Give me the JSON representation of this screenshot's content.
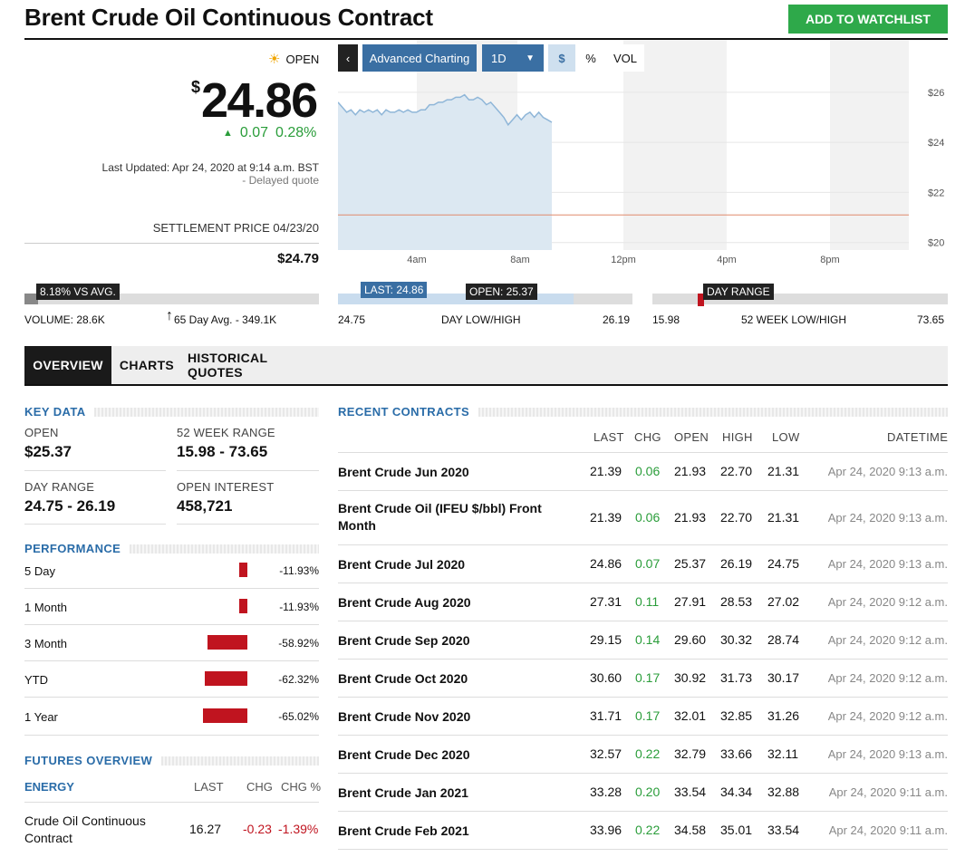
{
  "header": {
    "title": "Brent Crude Oil Continuous Contract",
    "watchlist_label": "ADD TO WATCHLIST"
  },
  "quote": {
    "status": "OPEN",
    "currency": "$",
    "price": "24.86",
    "change": "0.07",
    "change_pct": "0.28%",
    "last_updated": "Last Updated: Apr 24, 2020 at 9:14 a.m. BST",
    "delayed": "-  Delayed quote",
    "settlement_label": "SETTLEMENT PRICE 04/23/20",
    "settlement_value": "$24.79"
  },
  "chart_toolbar": {
    "advanced": "Advanced Charting",
    "interval": "1D",
    "dollar": "$",
    "percent": "%",
    "vol": "VOL"
  },
  "chart": {
    "x_ticks": [
      "4am",
      "8am",
      "12pm",
      "4pm",
      "8pm"
    ],
    "y_ticks": [
      "$26",
      "$24",
      "$22",
      "$20"
    ],
    "ylim": [
      19.7,
      26.5
    ],
    "prev_close": 21.1,
    "line_color": "#8fb6d8",
    "fill_color": "#dce8f2",
    "ref_line_color": "#e08a6c",
    "series": [
      [
        0,
        25.6
      ],
      [
        2,
        25.4
      ],
      [
        4,
        25.2
      ],
      [
        6,
        25.3
      ],
      [
        8,
        25.1
      ],
      [
        10,
        25.3
      ],
      [
        12,
        25.2
      ],
      [
        14,
        25.3
      ],
      [
        16,
        25.2
      ],
      [
        18,
        25.3
      ],
      [
        20,
        25.1
      ],
      [
        22,
        25.3
      ],
      [
        24,
        25.2
      ],
      [
        26,
        25.2
      ],
      [
        28,
        25.3
      ],
      [
        30,
        25.2
      ],
      [
        32,
        25.3
      ],
      [
        34,
        25.2
      ],
      [
        36,
        25.2
      ],
      [
        38,
        25.3
      ],
      [
        40,
        25.3
      ],
      [
        42,
        25.5
      ],
      [
        44,
        25.5
      ],
      [
        46,
        25.6
      ],
      [
        48,
        25.6
      ],
      [
        50,
        25.7
      ],
      [
        52,
        25.7
      ],
      [
        54,
        25.8
      ],
      [
        56,
        25.8
      ],
      [
        58,
        25.9
      ],
      [
        60,
        25.7
      ],
      [
        62,
        25.7
      ],
      [
        64,
        25.8
      ],
      [
        66,
        25.7
      ],
      [
        68,
        25.5
      ],
      [
        70,
        25.6
      ],
      [
        72,
        25.4
      ],
      [
        74,
        25.2
      ],
      [
        76,
        25.0
      ],
      [
        78,
        24.7
      ],
      [
        80,
        24.9
      ],
      [
        82,
        25.1
      ],
      [
        84,
        24.9
      ],
      [
        86,
        25.1
      ],
      [
        88,
        25.2
      ],
      [
        90,
        25.0
      ],
      [
        92,
        25.2
      ],
      [
        94,
        25.0
      ],
      [
        96,
        24.9
      ],
      [
        98,
        24.8
      ]
    ]
  },
  "volume_bar": {
    "label": "8.18% VS AVG.",
    "volume": "VOLUME: 28.6K",
    "avg": "65 Day Avg. - 349.1K",
    "fill": 0.082
  },
  "day_bar": {
    "last": "LAST: 24.86",
    "open": "OPEN: 25.37",
    "low": "24.75",
    "title": "DAY LOW/HIGH",
    "high": "26.19",
    "fill": 0.08
  },
  "week_bar": {
    "label": "DAY RANGE",
    "low": "15.98",
    "title": "52 WEEK LOW/HIGH",
    "high": "73.65"
  },
  "tabs": [
    "OVERVIEW",
    "CHARTS",
    "HISTORICAL QUOTES"
  ],
  "key_data": {
    "title": "KEY DATA",
    "open_label": "OPEN",
    "open_val": "$25.37",
    "range52_label": "52 WEEK RANGE",
    "range52_val": "15.98 - 73.65",
    "day_label": "DAY RANGE",
    "day_val": "24.75 - 26.19",
    "oi_label": "OPEN INTEREST",
    "oi_val": "458,721"
  },
  "performance": {
    "title": "PERFORMANCE",
    "rows": [
      {
        "name": "5 Day",
        "value": "-11.93%",
        "pct": 11.93
      },
      {
        "name": "1 Month",
        "value": "-11.93%",
        "pct": 11.93
      },
      {
        "name": "3 Month",
        "value": "-58.92%",
        "pct": 58.92
      },
      {
        "name": "YTD",
        "value": "-62.32%",
        "pct": 62.32
      },
      {
        "name": "1 Year",
        "value": "-65.02%",
        "pct": 65.02
      }
    ]
  },
  "futures": {
    "title": "FUTURES OVERVIEW",
    "col_group": "ENERGY",
    "col_last": "LAST",
    "col_chg": "CHG",
    "col_chgpct": "CHG %",
    "row": {
      "name": "Crude Oil Continuous Contract",
      "last": "16.27",
      "chg": "-0.23",
      "chgpct": "-1.39%"
    }
  },
  "recent": {
    "title": "RECENT CONTRACTS",
    "headers": {
      "last": "LAST",
      "chg": "CHG",
      "open": "OPEN",
      "high": "HIGH",
      "low": "LOW",
      "datetime": "DATETIME"
    },
    "rows": [
      {
        "name": "Brent Crude Jun 2020",
        "last": "21.39",
        "chg": "0.06",
        "open": "21.93",
        "high": "22.70",
        "low": "21.31",
        "dt": "Apr 24, 2020 9:13 a.m."
      },
      {
        "name": "Brent Crude Oil (IFEU $/bbl) Front Month",
        "last": "21.39",
        "chg": "0.06",
        "open": "21.93",
        "high": "22.70",
        "low": "21.31",
        "dt": "Apr 24, 2020 9:13 a.m."
      },
      {
        "name": "Brent Crude Jul 2020",
        "last": "24.86",
        "chg": "0.07",
        "open": "25.37",
        "high": "26.19",
        "low": "24.75",
        "dt": "Apr 24, 2020 9:13 a.m."
      },
      {
        "name": "Brent Crude Aug 2020",
        "last": "27.31",
        "chg": "0.11",
        "open": "27.91",
        "high": "28.53",
        "low": "27.02",
        "dt": "Apr 24, 2020 9:12 a.m."
      },
      {
        "name": "Brent Crude Sep 2020",
        "last": "29.15",
        "chg": "0.14",
        "open": "29.60",
        "high": "30.32",
        "low": "28.74",
        "dt": "Apr 24, 2020 9:12 a.m."
      },
      {
        "name": "Brent Crude Oct 2020",
        "last": "30.60",
        "chg": "0.17",
        "open": "30.92",
        "high": "31.73",
        "low": "30.17",
        "dt": "Apr 24, 2020 9:12 a.m."
      },
      {
        "name": "Brent Crude Nov 2020",
        "last": "31.71",
        "chg": "0.17",
        "open": "32.01",
        "high": "32.85",
        "low": "31.26",
        "dt": "Apr 24, 2020 9:12 a.m."
      },
      {
        "name": "Brent Crude Dec 2020",
        "last": "32.57",
        "chg": "0.22",
        "open": "32.79",
        "high": "33.66",
        "low": "32.11",
        "dt": "Apr 24, 2020 9:13 a.m."
      },
      {
        "name": "Brent Crude Jan 2021",
        "last": "33.28",
        "chg": "0.20",
        "open": "33.54",
        "high": "34.34",
        "low": "32.88",
        "dt": "Apr 24, 2020 9:11 a.m."
      },
      {
        "name": "Brent Crude Feb 2021",
        "last": "33.96",
        "chg": "0.22",
        "open": "34.58",
        "high": "35.01",
        "low": "33.54",
        "dt": "Apr 24, 2020 9:11 a.m."
      }
    ]
  }
}
